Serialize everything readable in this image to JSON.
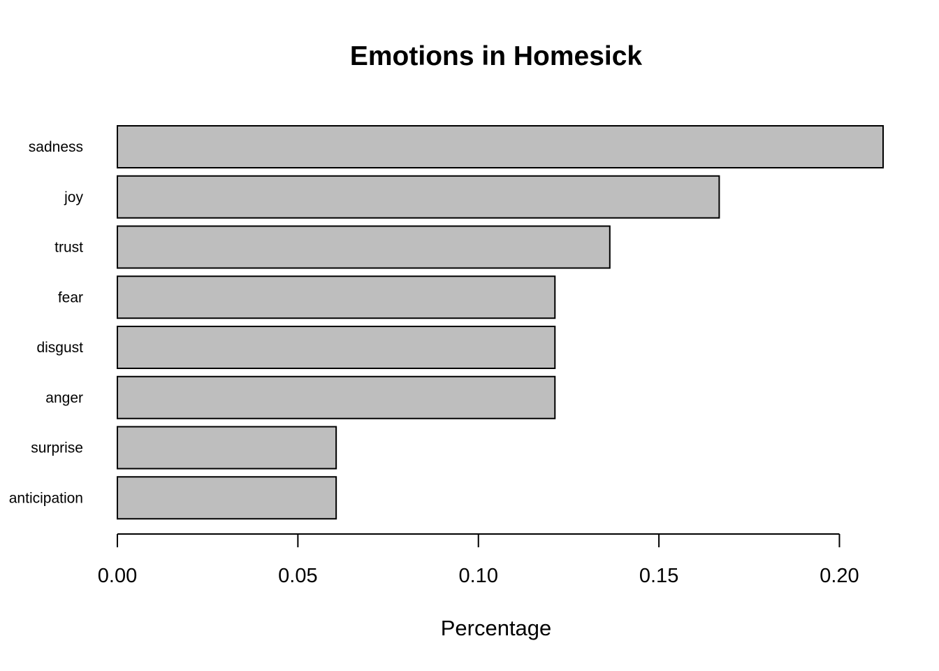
{
  "chart_data": {
    "type": "bar",
    "orientation": "horizontal",
    "title": "Emotions in Homesick",
    "xlabel": "Percentage",
    "ylabel": "",
    "categories": [
      "sadness",
      "joy",
      "trust",
      "fear",
      "disgust",
      "anger",
      "surprise",
      "anticipation"
    ],
    "values": [
      0.2121,
      0.1667,
      0.1364,
      0.1212,
      0.1212,
      0.1212,
      0.0606,
      0.0606
    ],
    "xlim": [
      0,
      0.2121
    ],
    "xticks": [
      0,
      0.05,
      0.1,
      0.15,
      0.2
    ],
    "xtick_labels": [
      "0.00",
      "0.05",
      "0.10",
      "0.15",
      "0.20"
    ],
    "bar_color": "#bebebe",
    "grid": false,
    "legend": "none"
  }
}
